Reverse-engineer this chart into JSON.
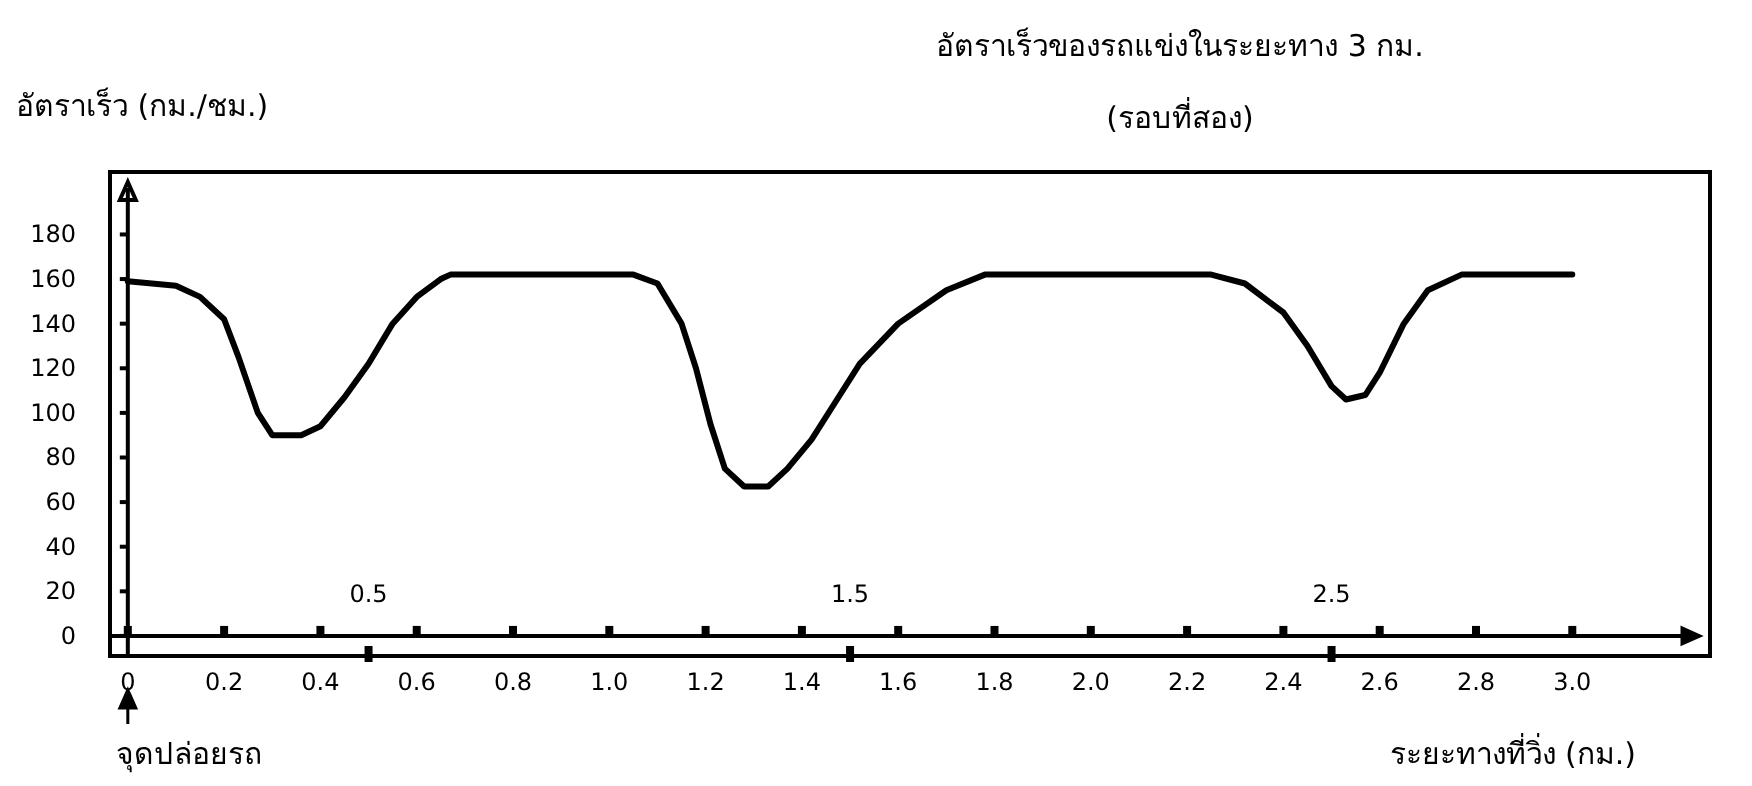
{
  "chart_data": {
    "type": "line",
    "title": "อัตราเร็วของรถแข่งในระยะทาง 3 กม.",
    "subtitle": "(รอบที่สอง)",
    "ylabel": "อัตราเร็ว (กม./ชม.)",
    "xlabel": "ระยะทางที่วิ่ง (กม.)",
    "xlim": [
      -0.037,
      3.286
    ],
    "ylim": [
      -9,
      208
    ],
    "xticks": [
      {
        "value": 0,
        "label": "0"
      },
      0.2,
      0.4,
      0.6,
      0.8,
      {
        "value": 1,
        "label": "1.0"
      },
      1.2,
      1.4,
      1.6,
      1.8,
      {
        "value": 2,
        "label": "2.0"
      },
      2.2,
      2.4,
      2.6,
      2.8,
      {
        "value": 3,
        "label": "3.0"
      }
    ],
    "yticks": [
      0,
      20,
      40,
      60,
      80,
      100,
      120,
      140,
      160,
      180
    ],
    "x2lim": [
      -0.037,
      3.286
    ],
    "x2ticks": [
      0.5,
      1.5,
      2.5
    ],
    "annotations": [
      "จุดปล่อยรถ"
    ],
    "series": [
      {
        "color": "#000000",
        "x": [
          0,
          0.1,
          0.15,
          0.2,
          0.23,
          0.27,
          0.3,
          0.36,
          0.4,
          0.45,
          0.5,
          0.55,
          0.6,
          0.65,
          0.67,
          1.05,
          1.1,
          1.15,
          1.18,
          1.21,
          1.24,
          1.28,
          1.33,
          1.37,
          1.42,
          1.47,
          1.52,
          1.6,
          1.7,
          1.78,
          2.25,
          2.32,
          2.4,
          2.45,
          2.5,
          2.53,
          2.57,
          2.6,
          2.65,
          2.7,
          2.77,
          3.0
        ],
        "values": [
          159,
          157,
          152,
          142,
          125,
          100,
          90,
          90,
          94,
          107,
          122,
          140,
          152,
          160,
          162,
          162,
          158,
          140,
          120,
          95,
          75,
          67,
          67,
          75,
          88,
          105,
          122,
          140,
          155,
          162,
          162,
          158,
          145,
          130,
          112,
          106,
          108,
          118,
          140,
          155,
          162,
          162
        ]
      }
    ]
  }
}
